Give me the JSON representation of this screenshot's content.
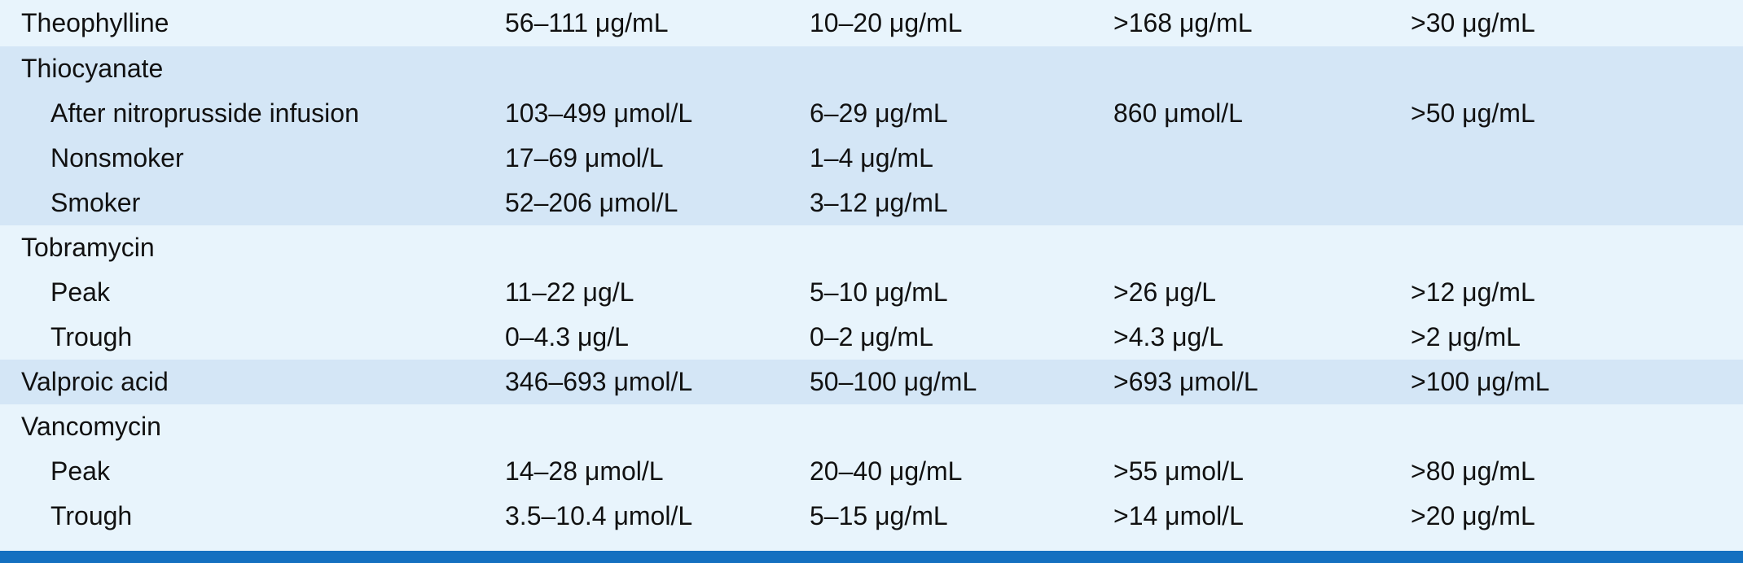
{
  "rows": [
    {
      "label": "Theophylline",
      "level": "drug",
      "shade": "a",
      "v1": "56–111 μg/mL",
      "v2": "10–20 μg/mL",
      "v3": ">168 μg/mL",
      "v4": ">30 μg/mL"
    },
    {
      "label": "Thiocyanate",
      "level": "drug",
      "shade": "b",
      "v1": "",
      "v2": "",
      "v3": "",
      "v4": ""
    },
    {
      "label": "After nitroprusside infusion",
      "level": "sub",
      "shade": "b",
      "v1": "103–499 μmol/L",
      "v2": "6–29 μg/mL",
      "v3": "860 μmol/L",
      "v4": ">50 μg/mL"
    },
    {
      "label": "Nonsmoker",
      "level": "sub",
      "shade": "b",
      "v1": "17–69 μmol/L",
      "v2": "1–4 μg/mL",
      "v3": "",
      "v4": ""
    },
    {
      "label": "Smoker",
      "level": "sub",
      "shade": "b",
      "v1": "52–206 μmol/L",
      "v2": "3–12 μg/mL",
      "v3": "",
      "v4": ""
    },
    {
      "label": "Tobramycin",
      "level": "drug",
      "shade": "a",
      "v1": "",
      "v2": "",
      "v3": "",
      "v4": ""
    },
    {
      "label": "Peak",
      "level": "sub",
      "shade": "a",
      "v1": "11–22 μg/L",
      "v2": "5–10 μg/mL",
      "v3": ">26 μg/L",
      "v4": ">12 μg/mL"
    },
    {
      "label": "Trough",
      "level": "sub",
      "shade": "a",
      "v1": "0–4.3 μg/L",
      "v2": "0–2 μg/mL",
      "v3": ">4.3 μg/L",
      "v4": ">2 μg/mL"
    },
    {
      "label": "Valproic acid",
      "level": "drug",
      "shade": "b",
      "v1": "346–693 μmol/L",
      "v2": "50–100 μg/mL",
      "v3": ">693 μmol/L",
      "v4": ">100 μg/mL"
    },
    {
      "label": "Vancomycin",
      "level": "drug",
      "shade": "a",
      "v1": "",
      "v2": "",
      "v3": "",
      "v4": ""
    },
    {
      "label": "Peak",
      "level": "sub",
      "shade": "a",
      "v1": "14–28 μmol/L",
      "v2": "20–40 μg/mL",
      "v3": ">55 μmol/L",
      "v4": ">80 μg/mL"
    },
    {
      "label": "Trough",
      "level": "sub",
      "shade": "a",
      "v1": "3.5–10.4 μmol/L",
      "v2": "5–15 μg/mL",
      "v3": ">14 μmol/L",
      "v4": ">20 μg/mL"
    }
  ],
  "colors": {
    "row_light": "#e8f4fc",
    "row_dark": "#d4e6f6",
    "rule": "#1470c0"
  }
}
